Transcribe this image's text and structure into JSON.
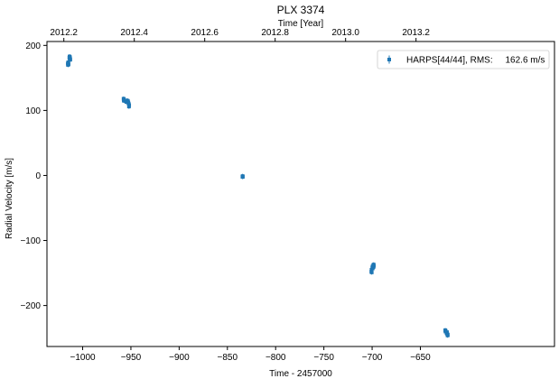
{
  "chart_data": {
    "type": "scatter",
    "title": "PLX 3374",
    "xlabel": "Time - 2457000",
    "ylabel": "Radial Velocity [m/s]",
    "top_xlabel": "Time [Year]",
    "xlim": [
      -1037,
      -511
    ],
    "ylim": [
      -263,
      206
    ],
    "xticks": [
      -1000,
      -950,
      -900,
      -850,
      -800,
      -750,
      -700,
      -650
    ],
    "xtick_labels": [
      "−1000",
      "−950",
      "−900",
      "−850",
      "−800",
      "−750",
      "−700",
      "−650"
    ],
    "yticks": [
      -200,
      -100,
      0,
      100,
      200
    ],
    "ytick_labels": [
      "−200",
      "−100",
      "0",
      "100",
      "200"
    ],
    "top_xticks": [
      -1019.5,
      -946.5,
      -873.5,
      -800.5,
      -727.5,
      -654.5
    ],
    "top_xtick_labels": [
      "2012.2",
      "2012.4",
      "2012.6",
      "2012.8",
      "2013.0",
      "2013.2"
    ],
    "grid": false,
    "legend_position": "top-right",
    "color": "#1f77b4",
    "series": [
      {
        "name": "HARPS[44/44], RMS:     162.6 m/s",
        "points": [
          [
            -1015.4,
            172
          ],
          [
            -1015.2,
            170
          ],
          [
            -1015.0,
            174
          ],
          [
            -1014.6,
            171
          ],
          [
            -1013.8,
            181
          ],
          [
            -1013.6,
            183
          ],
          [
            -1013.4,
            179
          ],
          [
            -1013.2,
            182
          ],
          [
            -1013.0,
            180
          ],
          [
            -1012.8,
            178
          ],
          [
            -957.6,
            118
          ],
          [
            -957.4,
            115
          ],
          [
            -957.2,
            117
          ],
          [
            -955.0,
            114
          ],
          [
            -954.6,
            113
          ],
          [
            -954.2,
            115
          ],
          [
            -953.4,
            115
          ],
          [
            -953.0,
            114
          ],
          [
            -952.6,
            112
          ],
          [
            -952.2,
            110
          ],
          [
            -952.0,
            106
          ],
          [
            -951.8,
            108
          ],
          [
            -834.4,
            -2
          ],
          [
            -834.2,
            -1
          ],
          [
            -834.0,
            -2
          ],
          [
            -700.8,
            -148
          ],
          [
            -700.6,
            -145
          ],
          [
            -700.4,
            -149
          ],
          [
            -699.8,
            -142
          ],
          [
            -699.6,
            -140
          ],
          [
            -699.4,
            -143
          ],
          [
            -698.8,
            -138
          ],
          [
            -698.6,
            -141
          ],
          [
            -698.4,
            -137
          ],
          [
            -698.2,
            -139
          ],
          [
            -624.2,
            -238
          ],
          [
            -624.0,
            -240
          ],
          [
            -623.8,
            -239
          ],
          [
            -622.8,
            -242
          ],
          [
            -622.6,
            -243
          ],
          [
            -622.4,
            -241
          ],
          [
            -622.0,
            -244
          ],
          [
            -621.8,
            -246
          ],
          [
            -621.6,
            -245
          ]
        ]
      }
    ]
  }
}
